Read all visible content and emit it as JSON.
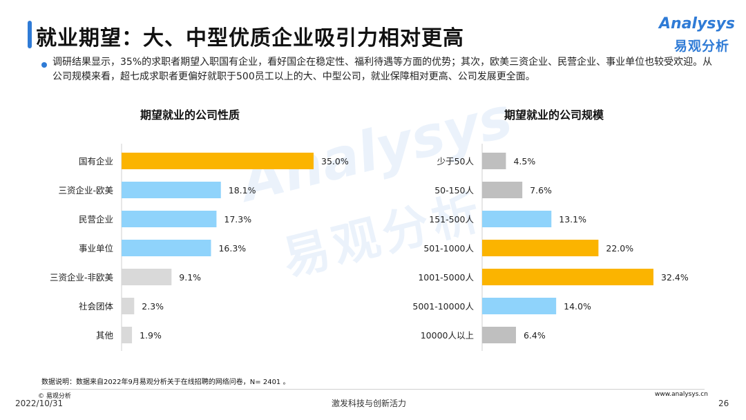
{
  "slide": {
    "title": "就业期望：大、中型优质企业吸引力相对更高",
    "intro": "调研结果显示，35%的求职者期望入职国有企业，看好国企在稳定性、福利待遇等方面的优势；其次，欧美三资企业、民营企业、事业单位也较受欢迎。从公司规模来看，超七成求职者更偏好就职于500员工以上的大、中型公司，就业保障相对更高、公司发展更全面。",
    "data_note": "数据说明：数据来自2022年9月易观分析关于在线招聘的网络问卷，N=  2401 。",
    "copyright": "© 易观分析",
    "date": "2022/10/31",
    "slogan": "激发科技与创新活力",
    "site": "www.analysys.cn",
    "page_number": "26"
  },
  "logo": {
    "en": "Analysys",
    "cn": "易观分析",
    "color": "#2f7bd6"
  },
  "watermark": {
    "en": "Analysys",
    "cn": "易观分析"
  },
  "colors": {
    "highlight": "#fbb400",
    "blue": "#8fd3fb",
    "gray": "#d9d9d9",
    "darkgray": "#bfbfbf",
    "accent": "#2f7bd6"
  },
  "chart_data": [
    {
      "type": "bar",
      "orientation": "horizontal",
      "title": "期望就业的公司性质",
      "categories": [
        "国有企业",
        "三资企业-欧美",
        "民营企业",
        "事业单位",
        "三资企业-非欧美",
        "社会团体",
        "其他"
      ],
      "values": [
        35.0,
        18.1,
        17.3,
        16.3,
        9.1,
        2.3,
        1.9
      ],
      "value_labels": [
        "35.0%",
        "18.1%",
        "17.3%",
        "16.3%",
        "9.1%",
        "2.3%",
        "1.9%"
      ],
      "bar_colors": [
        "#fbb400",
        "#8fd3fb",
        "#8fd3fb",
        "#8fd3fb",
        "#d9d9d9",
        "#d9d9d9",
        "#d9d9d9"
      ],
      "unit": "%",
      "xlim": [
        0,
        35
      ],
      "grid": false
    },
    {
      "type": "bar",
      "orientation": "horizontal",
      "title": "期望就业的公司规模",
      "categories": [
        "少于50人",
        "50-150人",
        "151-500人",
        "501-1000人",
        "1001-5000人",
        "5001-10000人",
        "10000人以上"
      ],
      "values": [
        4.5,
        7.6,
        13.1,
        22.0,
        32.4,
        14.0,
        6.4
      ],
      "value_labels": [
        "4.5%",
        "7.6%",
        "13.1%",
        "22.0%",
        "32.4%",
        "14.0%",
        "6.4%"
      ],
      "bar_colors": [
        "#bfbfbf",
        "#bfbfbf",
        "#8fd3fb",
        "#fbb400",
        "#fbb400",
        "#8fd3fb",
        "#bfbfbf"
      ],
      "unit": "%",
      "xlim": [
        0,
        32.4
      ],
      "grid": false
    }
  ]
}
